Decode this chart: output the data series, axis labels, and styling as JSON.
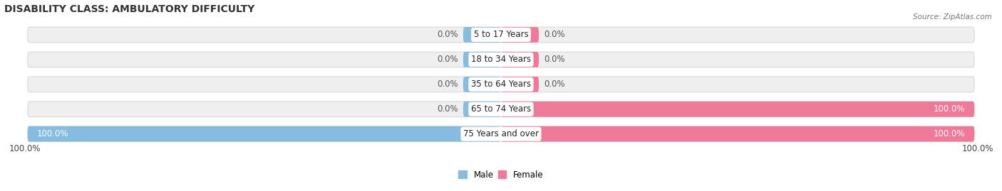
{
  "title": "DISABILITY CLASS: AMBULATORY DIFFICULTY",
  "source": "Source: ZipAtlas.com",
  "categories": [
    "5 to 17 Years",
    "18 to 34 Years",
    "35 to 64 Years",
    "65 to 74 Years",
    "75 Years and over"
  ],
  "male_values": [
    0.0,
    0.0,
    0.0,
    0.0,
    100.0
  ],
  "female_values": [
    0.0,
    0.0,
    0.0,
    100.0,
    100.0
  ],
  "male_color_bar": "#85bce0",
  "female_color_bar": "#f07898",
  "bg_bar_color": "#efefef",
  "bg_bar_edge": "#d8d8d8",
  "title_fontsize": 10,
  "label_fontsize": 8.5,
  "tick_fontsize": 8.5,
  "bar_height": 0.62,
  "legend_male_color": "#85bce0",
  "legend_female_color": "#f07898",
  "stub_size": 8.0
}
